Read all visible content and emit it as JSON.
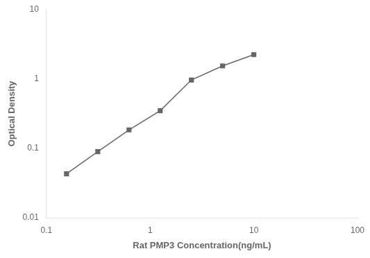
{
  "chart_data": {
    "type": "line",
    "x": [
      0.156,
      0.3125,
      0.625,
      1.25,
      2.5,
      5.0,
      10.0
    ],
    "values": [
      0.043,
      0.09,
      0.185,
      0.35,
      0.97,
      1.55,
      2.25
    ],
    "xlabel": "Rat PMP3 Concentration(ng/mL)",
    "ylabel": "Optical Density",
    "xlim": [
      0.1,
      100
    ],
    "ylim": [
      0.01,
      10
    ],
    "xticks": [
      0.1,
      1,
      10,
      100
    ],
    "yticks": [
      0.01,
      0.1,
      1,
      10
    ],
    "log": true,
    "grid": false,
    "color": "#666666",
    "marker": "square"
  }
}
